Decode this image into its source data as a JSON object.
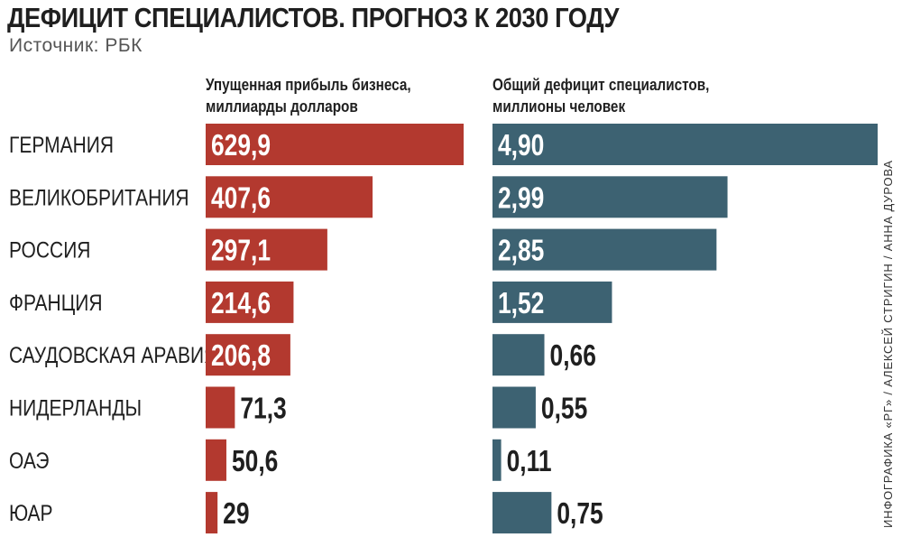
{
  "title": "ДЕФИЦИТ СПЕЦИАЛИСТОВ. ПРОГНОЗ К 2030 ГОДУ",
  "source": "Источник: РБК",
  "credit": "ИНФОГРАФИКА «РГ» / АЛЕКСЕЙ СТРИГИН / АННА ДУРОВА",
  "colors": {
    "profit": "#b3392f",
    "deficit": "#3d6272",
    "text": "#1f1f1f"
  },
  "chart_data": {
    "type": "bar",
    "orientation": "horizontal",
    "categories": [
      "ГЕРМАНИЯ",
      "ВЕЛИКОБРИТАНИЯ",
      "РОССИЯ",
      "ФРАНЦИЯ",
      "САУДОВСКАЯ АРАВИЯ",
      "НИДЕРЛАНДЫ",
      "ОАЭ",
      "ЮАР"
    ],
    "series": [
      {
        "name": "Упущенная прибыль бизнеса, миллиарды долларов",
        "name_lines": [
          "Упущенная прибыль бизнеса,",
          "миллиарды долларов"
        ],
        "values": [
          629.9,
          407.6,
          297.1,
          214.6,
          206.8,
          71.3,
          50.6,
          29
        ],
        "labels": [
          "629,9",
          "407,6",
          "297,1",
          "214,6",
          "206,8",
          "71,3",
          "50,6",
          "29"
        ]
      },
      {
        "name": "Общий дефицит специалистов, миллионы человек",
        "name_lines": [
          "Общий дефицит специалистов,",
          "миллионы человек"
        ],
        "values": [
          4.9,
          2.99,
          2.85,
          1.52,
          0.66,
          0.55,
          0.11,
          0.75
        ],
        "labels": [
          "4,90",
          "2,99",
          "2,85",
          "1,52",
          "0,66",
          "0,55",
          "0,11",
          "0,75"
        ]
      }
    ],
    "grid": false,
    "legend": "none"
  }
}
